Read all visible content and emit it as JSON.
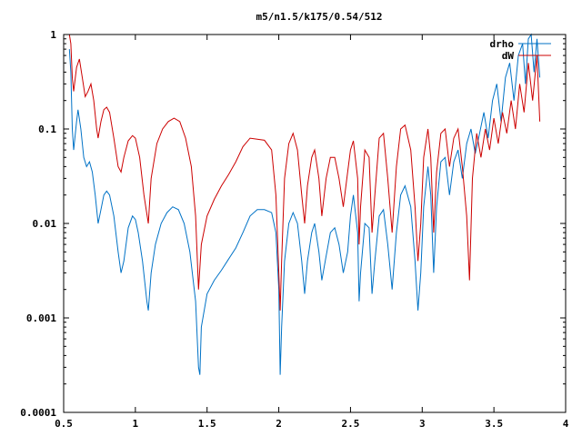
{
  "chart_data": {
    "type": "line",
    "title": "m5/n1.5/k175/0.54/512",
    "xlabel": "",
    "ylabel": "",
    "xlim": [
      0.5,
      4
    ],
    "ylim": [
      0.0001,
      1
    ],
    "yscale": "log",
    "grid": false,
    "legend_position": "top-right",
    "xticks": [
      "0.5",
      "1",
      "1.5",
      "2",
      "2.5",
      "3",
      "3.5",
      "4"
    ],
    "yticks": [
      "0.0001",
      "0.001",
      "0.01",
      "0.1",
      "1"
    ],
    "series": [
      {
        "name": "drho",
        "color": "#0072c6",
        "points": [
          [
            0.54,
            0.7
          ],
          [
            0.55,
            0.4
          ],
          [
            0.56,
            0.1
          ],
          [
            0.57,
            0.06
          ],
          [
            0.59,
            0.12
          ],
          [
            0.6,
            0.16
          ],
          [
            0.62,
            0.1
          ],
          [
            0.64,
            0.05
          ],
          [
            0.66,
            0.04
          ],
          [
            0.68,
            0.045
          ],
          [
            0.7,
            0.035
          ],
          [
            0.72,
            0.02
          ],
          [
            0.74,
            0.01
          ],
          [
            0.76,
            0.014
          ],
          [
            0.78,
            0.02
          ],
          [
            0.8,
            0.022
          ],
          [
            0.82,
            0.02
          ],
          [
            0.85,
            0.012
          ],
          [
            0.88,
            0.005
          ],
          [
            0.9,
            0.003
          ],
          [
            0.92,
            0.004
          ],
          [
            0.95,
            0.009
          ],
          [
            0.98,
            0.012
          ],
          [
            1.0,
            0.011
          ],
          [
            1.02,
            0.008
          ],
          [
            1.05,
            0.004
          ],
          [
            1.08,
            0.0015
          ],
          [
            1.09,
            0.0012
          ],
          [
            1.11,
            0.003
          ],
          [
            1.14,
            0.006
          ],
          [
            1.18,
            0.01
          ],
          [
            1.22,
            0.013
          ],
          [
            1.26,
            0.015
          ],
          [
            1.3,
            0.014
          ],
          [
            1.34,
            0.01
          ],
          [
            1.38,
            0.005
          ],
          [
            1.42,
            0.0015
          ],
          [
            1.44,
            0.0003
          ],
          [
            1.45,
            0.00025
          ],
          [
            1.46,
            0.0008
          ],
          [
            1.5,
            0.0018
          ],
          [
            1.55,
            0.0025
          ],
          [
            1.6,
            0.0032
          ],
          [
            1.65,
            0.0042
          ],
          [
            1.7,
            0.0055
          ],
          [
            1.75,
            0.008
          ],
          [
            1.8,
            0.012
          ],
          [
            1.85,
            0.014
          ],
          [
            1.9,
            0.014
          ],
          [
            1.95,
            0.013
          ],
          [
            1.98,
            0.008
          ],
          [
            2.0,
            0.002
          ],
          [
            2.01,
            0.00025
          ],
          [
            2.02,
            0.0008
          ],
          [
            2.04,
            0.004
          ],
          [
            2.07,
            0.01
          ],
          [
            2.1,
            0.013
          ],
          [
            2.13,
            0.01
          ],
          [
            2.16,
            0.004
          ],
          [
            2.18,
            0.0018
          ],
          [
            2.2,
            0.004
          ],
          [
            2.23,
            0.008
          ],
          [
            2.25,
            0.01
          ],
          [
            2.28,
            0.005
          ],
          [
            2.3,
            0.0025
          ],
          [
            2.33,
            0.0045
          ],
          [
            2.36,
            0.008
          ],
          [
            2.39,
            0.009
          ],
          [
            2.42,
            0.006
          ],
          [
            2.45,
            0.003
          ],
          [
            2.48,
            0.005
          ],
          [
            2.5,
            0.012
          ],
          [
            2.52,
            0.02
          ],
          [
            2.55,
            0.008
          ],
          [
            2.56,
            0.0015
          ],
          [
            2.57,
            0.003
          ],
          [
            2.6,
            0.01
          ],
          [
            2.63,
            0.009
          ],
          [
            2.65,
            0.0018
          ],
          [
            2.67,
            0.004
          ],
          [
            2.7,
            0.012
          ],
          [
            2.73,
            0.014
          ],
          [
            2.76,
            0.006
          ],
          [
            2.79,
            0.002
          ],
          [
            2.82,
            0.008
          ],
          [
            2.85,
            0.02
          ],
          [
            2.88,
            0.025
          ],
          [
            2.92,
            0.015
          ],
          [
            2.95,
            0.004
          ],
          [
            2.97,
            0.0012
          ],
          [
            2.99,
            0.003
          ],
          [
            3.01,
            0.015
          ],
          [
            3.04,
            0.04
          ],
          [
            3.06,
            0.02
          ],
          [
            3.08,
            0.003
          ],
          [
            3.1,
            0.015
          ],
          [
            3.13,
            0.045
          ],
          [
            3.16,
            0.05
          ],
          [
            3.19,
            0.02
          ],
          [
            3.22,
            0.045
          ],
          [
            3.25,
            0.06
          ],
          [
            3.28,
            0.03
          ],
          [
            3.31,
            0.07
          ],
          [
            3.34,
            0.1
          ],
          [
            3.37,
            0.055
          ],
          [
            3.4,
            0.09
          ],
          [
            3.43,
            0.15
          ],
          [
            3.46,
            0.08
          ],
          [
            3.49,
            0.2
          ],
          [
            3.52,
            0.3
          ],
          [
            3.55,
            0.12
          ],
          [
            3.58,
            0.35
          ],
          [
            3.61,
            0.5
          ],
          [
            3.64,
            0.2
          ],
          [
            3.67,
            0.6
          ],
          [
            3.7,
            0.8
          ],
          [
            3.72,
            0.3
          ],
          [
            3.74,
            0.9
          ],
          [
            3.76,
            1.0
          ],
          [
            3.78,
            0.4
          ],
          [
            3.8,
            0.9
          ],
          [
            3.82,
            0.35
          ]
        ]
      },
      {
        "name": "dW",
        "color": "#cc0000",
        "points": [
          [
            0.54,
            1.0
          ],
          [
            0.55,
            0.8
          ],
          [
            0.56,
            0.35
          ],
          [
            0.57,
            0.25
          ],
          [
            0.59,
            0.45
          ],
          [
            0.61,
            0.55
          ],
          [
            0.63,
            0.35
          ],
          [
            0.65,
            0.22
          ],
          [
            0.67,
            0.25
          ],
          [
            0.69,
            0.3
          ],
          [
            0.71,
            0.2
          ],
          [
            0.73,
            0.1
          ],
          [
            0.74,
            0.08
          ],
          [
            0.76,
            0.12
          ],
          [
            0.78,
            0.16
          ],
          [
            0.8,
            0.17
          ],
          [
            0.82,
            0.15
          ],
          [
            0.85,
            0.08
          ],
          [
            0.88,
            0.04
          ],
          [
            0.9,
            0.035
          ],
          [
            0.92,
            0.05
          ],
          [
            0.95,
            0.075
          ],
          [
            0.98,
            0.085
          ],
          [
            1.0,
            0.08
          ],
          [
            1.03,
            0.05
          ],
          [
            1.06,
            0.02
          ],
          [
            1.09,
            0.01
          ],
          [
            1.11,
            0.03
          ],
          [
            1.15,
            0.07
          ],
          [
            1.19,
            0.1
          ],
          [
            1.23,
            0.12
          ],
          [
            1.27,
            0.13
          ],
          [
            1.31,
            0.12
          ],
          [
            1.35,
            0.08
          ],
          [
            1.39,
            0.04
          ],
          [
            1.42,
            0.012
          ],
          [
            1.44,
            0.002
          ],
          [
            1.46,
            0.006
          ],
          [
            1.5,
            0.012
          ],
          [
            1.55,
            0.018
          ],
          [
            1.6,
            0.025
          ],
          [
            1.65,
            0.033
          ],
          [
            1.7,
            0.045
          ],
          [
            1.75,
            0.065
          ],
          [
            1.8,
            0.08
          ],
          [
            1.85,
            0.078
          ],
          [
            1.9,
            0.076
          ],
          [
            1.95,
            0.06
          ],
          [
            1.98,
            0.02
          ],
          [
            2.0,
            0.003
          ],
          [
            2.01,
            0.0012
          ],
          [
            2.02,
            0.004
          ],
          [
            2.04,
            0.03
          ],
          [
            2.07,
            0.07
          ],
          [
            2.1,
            0.09
          ],
          [
            2.13,
            0.06
          ],
          [
            2.16,
            0.02
          ],
          [
            2.18,
            0.01
          ],
          [
            2.2,
            0.025
          ],
          [
            2.23,
            0.05
          ],
          [
            2.25,
            0.06
          ],
          [
            2.28,
            0.03
          ],
          [
            2.3,
            0.012
          ],
          [
            2.33,
            0.03
          ],
          [
            2.36,
            0.05
          ],
          [
            2.39,
            0.05
          ],
          [
            2.42,
            0.03
          ],
          [
            2.45,
            0.015
          ],
          [
            2.48,
            0.035
          ],
          [
            2.5,
            0.06
          ],
          [
            2.52,
            0.075
          ],
          [
            2.55,
            0.03
          ],
          [
            2.56,
            0.006
          ],
          [
            2.57,
            0.015
          ],
          [
            2.6,
            0.06
          ],
          [
            2.63,
            0.05
          ],
          [
            2.65,
            0.008
          ],
          [
            2.67,
            0.02
          ],
          [
            2.7,
            0.08
          ],
          [
            2.73,
            0.09
          ],
          [
            2.76,
            0.03
          ],
          [
            2.79,
            0.008
          ],
          [
            2.82,
            0.04
          ],
          [
            2.85,
            0.1
          ],
          [
            2.88,
            0.11
          ],
          [
            2.92,
            0.06
          ],
          [
            2.95,
            0.015
          ],
          [
            2.97,
            0.004
          ],
          [
            2.99,
            0.01
          ],
          [
            3.01,
            0.05
          ],
          [
            3.04,
            0.1
          ],
          [
            3.06,
            0.05
          ],
          [
            3.08,
            0.008
          ],
          [
            3.1,
            0.035
          ],
          [
            3.13,
            0.09
          ],
          [
            3.16,
            0.1
          ],
          [
            3.19,
            0.04
          ],
          [
            3.22,
            0.08
          ],
          [
            3.25,
            0.1
          ],
          [
            3.28,
            0.04
          ],
          [
            3.31,
            0.012
          ],
          [
            3.33,
            0.0025
          ],
          [
            3.35,
            0.03
          ],
          [
            3.38,
            0.09
          ],
          [
            3.41,
            0.05
          ],
          [
            3.44,
            0.1
          ],
          [
            3.47,
            0.06
          ],
          [
            3.5,
            0.13
          ],
          [
            3.53,
            0.07
          ],
          [
            3.56,
            0.15
          ],
          [
            3.59,
            0.09
          ],
          [
            3.62,
            0.2
          ],
          [
            3.65,
            0.1
          ],
          [
            3.68,
            0.3
          ],
          [
            3.71,
            0.15
          ],
          [
            3.74,
            0.5
          ],
          [
            3.77,
            0.2
          ],
          [
            3.8,
            0.6
          ],
          [
            3.82,
            0.12
          ]
        ]
      }
    ]
  }
}
